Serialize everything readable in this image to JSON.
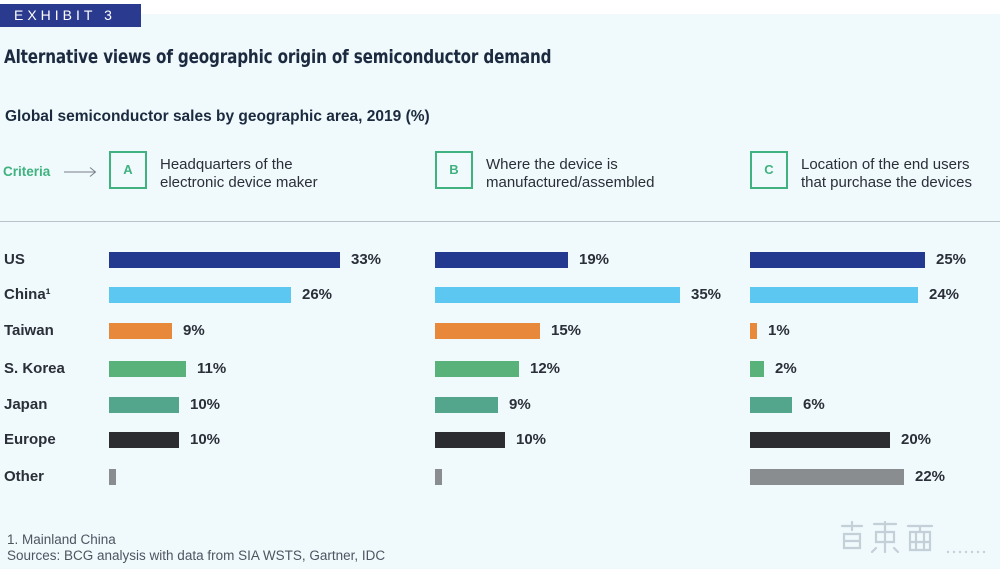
{
  "exhibit_label": "EXHIBIT 3",
  "watermark": "智东西 zhidx.com",
  "criteria_label": "Criteria",
  "footnotes": {
    "note1": "1. Mainland China",
    "sources": "Sources: BCG analysis with data from SIA WSTS, Gartner, IDC"
  },
  "colors": {
    "US": "#22398f",
    "China": "#5cc8f2",
    "Taiwan": "#e8883a",
    "S. Korea": "#5ab27b",
    "Japan": "#53a58b",
    "Europe": "#2b2d30",
    "Other": "#8a8d90",
    "accent": "#3fb27f"
  },
  "chart_data": {
    "type": "bar",
    "orientation": "horizontal",
    "title": "Alternative views of geographic origin of semiconductor demand",
    "subtitle": "Global semiconductor sales by geographic area, 2019 (%)",
    "categories": [
      "US",
      "China¹",
      "Taiwan",
      "S. Korea",
      "Japan",
      "Europe",
      "Other"
    ],
    "unit": "%",
    "series": [
      {
        "letter": "A",
        "name": "Headquarters of the electronic device maker",
        "line1": "Headquarters of the",
        "line2": "electronic device maker",
        "values": [
          33,
          26,
          9,
          11,
          10,
          10,
          1
        ],
        "labels": [
          "33%",
          "26%",
          "9%",
          "11%",
          "10%",
          "10%",
          ""
        ]
      },
      {
        "letter": "B",
        "name": "Where the device is manufactured/assembled",
        "line1": "Where the device is",
        "line2": "manufactured/assembled",
        "values": [
          19,
          35,
          15,
          12,
          9,
          10,
          1
        ],
        "labels": [
          "19%",
          "35%",
          "15%",
          "12%",
          "9%",
          "10%",
          ""
        ]
      },
      {
        "letter": "C",
        "name": "Location of the end users that purchase the devices",
        "line1": "Location of the end users",
        "line2": "that purchase the devices",
        "values": [
          25,
          24,
          1,
          2,
          6,
          20,
          22
        ],
        "labels": [
          "25%",
          "24%",
          "1%",
          "2%",
          "6%",
          "20%",
          "22%"
        ]
      }
    ]
  }
}
